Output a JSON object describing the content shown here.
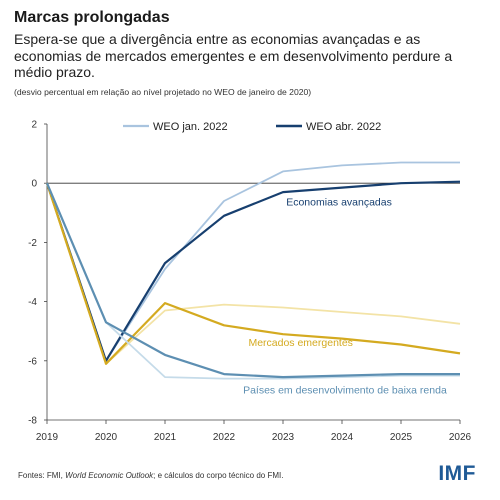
{
  "header": {
    "title": "Marcas prolongadas",
    "subtitle": "Espera-se que a divergência entre as economias avançadas e as economias de mercados emergentes e em desenvolvimento perdure a médio prazo.",
    "note": "(desvio percentual em relação ao nível projetado no WEO de janeiro de 2020)"
  },
  "footer": {
    "source_prefix": "Fontes: FMI, ",
    "source_italic": "World Economic Outlook",
    "source_suffix": "; e cálculos do corpo técnico do FMI.",
    "logo": "IMF"
  },
  "colors": {
    "advanced_jan": "#a9c4df",
    "advanced_apr": "#173f6f",
    "emerging_jan": "#f3e3a6",
    "emerging_apr": "#d4aa20",
    "lowincome_jan": "#c5dbe9",
    "lowincome_apr": "#5d8fb2",
    "axis": "#444444",
    "zero_line": "#333333"
  },
  "chart_data": {
    "type": "line",
    "x": [
      2019,
      2020,
      2021,
      2022,
      2023,
      2024,
      2025,
      2026
    ],
    "ylim": [
      -8,
      2
    ],
    "yticks": [
      -8,
      -6,
      -4,
      -2,
      0,
      2
    ],
    "grid": false,
    "legend_position": "top",
    "legend": [
      {
        "label": "WEO jan. 2022",
        "style": "light"
      },
      {
        "label": "WEO abr. 2022",
        "style": "dark"
      }
    ],
    "series": [
      {
        "group": "Economias avançadas",
        "vintage": "WEO jan. 2022",
        "color_key": "advanced_jan",
        "values": [
          0,
          -6.0,
          -2.9,
          -0.6,
          0.4,
          0.6,
          0.7,
          0.7
        ]
      },
      {
        "group": "Economias avançadas",
        "vintage": "WEO abr. 2022",
        "color_key": "advanced_apr",
        "values": [
          0,
          -6.0,
          -2.7,
          -1.1,
          -0.3,
          -0.15,
          0.0,
          0.05
        ]
      },
      {
        "group": "Mercados emergentes",
        "vintage": "WEO jan. 2022",
        "color_key": "emerging_jan",
        "values": [
          0,
          -6.1,
          -4.3,
          -4.1,
          -4.2,
          -4.35,
          -4.5,
          -4.75
        ]
      },
      {
        "group": "Mercados emergentes",
        "vintage": "WEO abr. 2022",
        "color_key": "emerging_apr",
        "values": [
          0,
          -6.1,
          -4.05,
          -4.8,
          -5.1,
          -5.25,
          -5.45,
          -5.75
        ]
      },
      {
        "group": "Países em desenvolvimento de baixa renda",
        "vintage": "WEO jan. 2022",
        "color_key": "lowincome_jan",
        "values": [
          0,
          -4.7,
          -6.55,
          -6.6,
          -6.6,
          -6.55,
          -6.5,
          -6.5
        ]
      },
      {
        "group": "Países em desenvolvimento de baixa renda",
        "vintage": "WEO abr. 2022",
        "color_key": "lowincome_apr",
        "values": [
          0,
          -4.7,
          -5.8,
          -6.45,
          -6.55,
          -6.5,
          -6.45,
          -6.45
        ]
      }
    ],
    "annotations": [
      {
        "text": "Economias avançadas",
        "color_key": "advanced_apr",
        "x": 2023.95,
        "y": -0.75
      },
      {
        "text": "Mercados emergentes",
        "color_key": "emerging_apr",
        "x": 2023.3,
        "y": -5.5
      },
      {
        "text": "Países em desenvolvimento de baixa renda",
        "color_key": "lowincome_apr",
        "x": 2024.05,
        "y": -7.1
      }
    ]
  }
}
